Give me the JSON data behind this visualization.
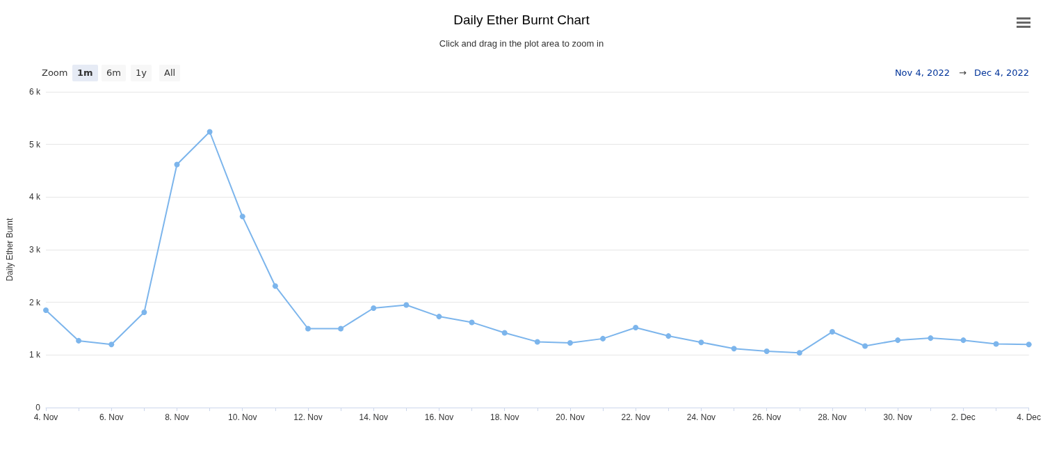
{
  "chart_data": {
    "type": "line",
    "title": "Daily Ether Burnt Chart",
    "subtitle": "Click and drag in the plot area to zoom in",
    "ylabel": "Daily Ether Burnt",
    "categories": [
      "4. Nov",
      null,
      "6. Nov",
      null,
      "8. Nov",
      null,
      "10. Nov",
      null,
      "12. Nov",
      null,
      "14. Nov",
      null,
      "16. Nov",
      null,
      "18. Nov",
      null,
      "20. Nov",
      null,
      "22. Nov",
      null,
      "24. Nov",
      null,
      "26. Nov",
      null,
      "28. Nov",
      null,
      "30. Nov",
      null,
      "2. Dec",
      null,
      "4. Dec"
    ],
    "series": [
      {
        "color": "#7cb5ec",
        "values": [
          1850,
          1270,
          1200,
          1810,
          4620,
          5240,
          3630,
          2310,
          1500,
          1500,
          1890,
          1950,
          1730,
          1620,
          1420,
          1250,
          1230,
          1310,
          1520,
          1360,
          1240,
          1120,
          1070,
          1040,
          1440,
          1170,
          1280,
          1320,
          1280,
          1210,
          1200
        ]
      }
    ],
    "ylim": [
      0,
      6000
    ],
    "yticks": [
      0,
      {
        "value": 1000,
        "label": "1 k"
      },
      {
        "value": 2000,
        "label": "2 k"
      },
      {
        "value": 3000,
        "label": "3 k"
      },
      {
        "value": 4000,
        "label": "4 k"
      },
      {
        "value": 5000,
        "label": "5 k"
      },
      {
        "value": 6000,
        "label": "6 k"
      }
    ],
    "grid": "y",
    "marker": "circle",
    "line_style": "solid",
    "annotations": [
      "Zoom",
      "1m",
      "6m",
      "1y",
      "All",
      "Nov 4, 2022",
      "→",
      "Dec 4, 2022"
    ]
  }
}
